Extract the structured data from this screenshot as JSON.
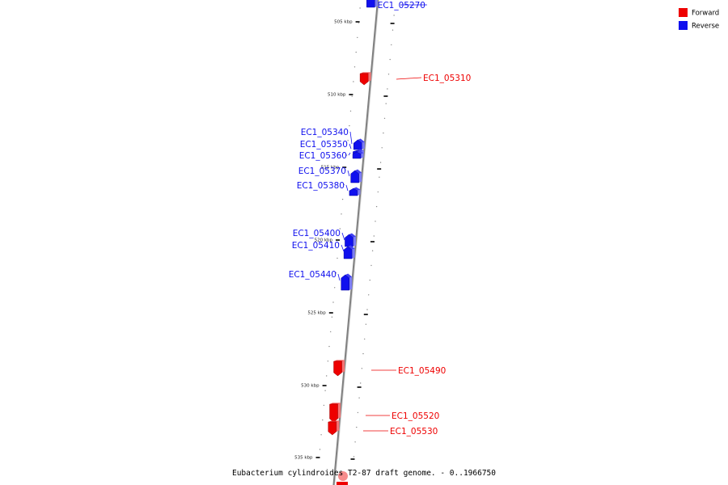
{
  "colors": {
    "forward": "#ee0000",
    "reverse": "#1010ee",
    "backbone": "#808080"
  },
  "legend": {
    "forward_label": "Forward",
    "reverse_label": "Reverse"
  },
  "ticks": [
    "505 kbp",
    "510 kbp",
    "515 kbp",
    "520 kbp",
    "525 kbp",
    "530 kbp",
    "535 kbp"
  ],
  "genes": [
    {
      "id": "EC1_05270",
      "strand": "reverse"
    },
    {
      "id": "EC1_05310",
      "strand": "forward"
    },
    {
      "id": "EC1_05340",
      "strand": "reverse"
    },
    {
      "id": "EC1_05350",
      "strand": "reverse"
    },
    {
      "id": "EC1_05360",
      "strand": "reverse"
    },
    {
      "id": "EC1_05370",
      "strand": "reverse"
    },
    {
      "id": "EC1_05380",
      "strand": "reverse"
    },
    {
      "id": "EC1_05400",
      "strand": "reverse"
    },
    {
      "id": "EC1_05410",
      "strand": "reverse"
    },
    {
      "id": "EC1_05440",
      "strand": "reverse"
    },
    {
      "id": "EC1_05490",
      "strand": "forward"
    },
    {
      "id": "EC1_05520",
      "strand": "forward"
    },
    {
      "id": "EC1_05530",
      "strand": "forward"
    }
  ],
  "caption": "Eubacterium cylindroides T2-87 draft genome. - 0..1966750"
}
